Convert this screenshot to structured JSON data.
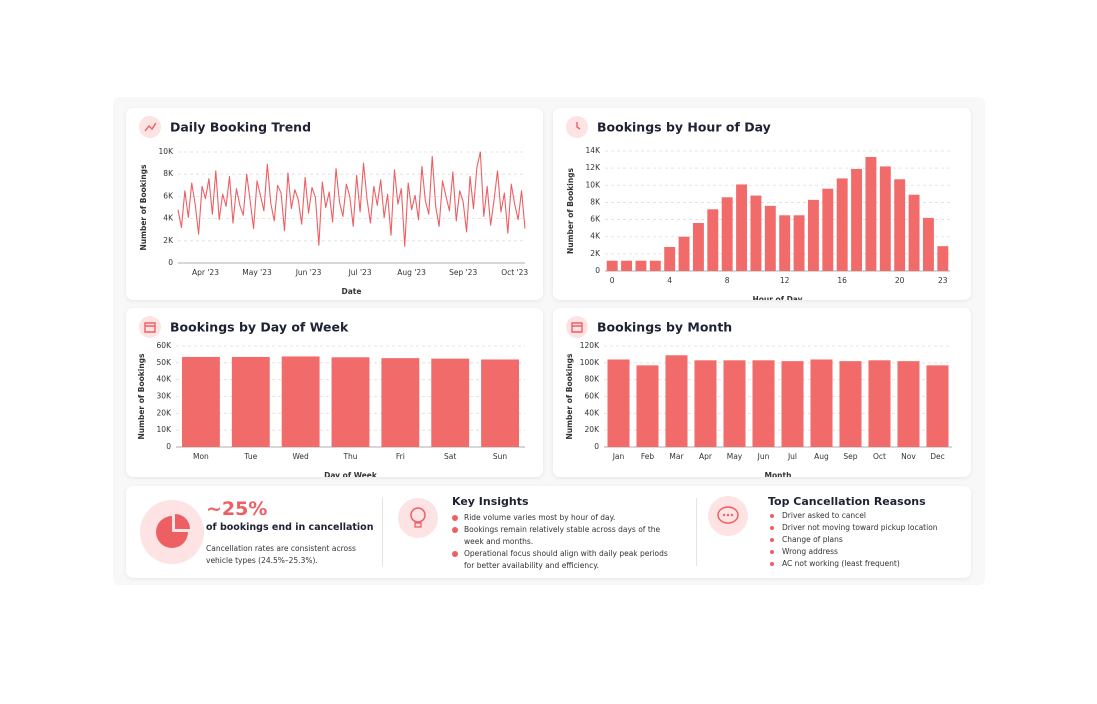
{
  "chart_data": [
    {
      "type": "line",
      "title": "Daily Booking Trend",
      "x_label": "Date",
      "y_label": "Number of Bookings",
      "color": "#ee5f63",
      "grid": true,
      "categories": [
        null,
        null,
        null,
        null,
        null,
        null,
        null,
        null,
        "Apr '23",
        null,
        null,
        null,
        null,
        null,
        null,
        null,
        null,
        null,
        null,
        null,
        null,
        null,
        null,
        "May '23",
        null,
        null,
        null,
        null,
        null,
        null,
        null,
        null,
        null,
        null,
        null,
        null,
        null,
        null,
        "Jun '23",
        null,
        null,
        null,
        null,
        null,
        null,
        null,
        null,
        null,
        null,
        null,
        null,
        null,
        null,
        "Jul '23",
        null,
        null,
        null,
        null,
        null,
        null,
        null,
        null,
        null,
        null,
        null,
        null,
        null,
        null,
        "Aug '23",
        null,
        null,
        null,
        null,
        null,
        null,
        null,
        null,
        null,
        null,
        null,
        null,
        null,
        null,
        "Sep '23",
        null,
        null,
        null,
        null,
        null,
        null,
        null,
        null,
        null,
        null,
        null,
        null,
        null,
        null,
        "Oct '23",
        null,
        null,
        null
      ],
      "values": [
        4800,
        3200,
        6500,
        4100,
        7200,
        5300,
        2600,
        6900,
        5800,
        7600,
        4400,
        8300,
        3900,
        6200,
        5100,
        7800,
        3600,
        6700,
        5200,
        4300,
        8000,
        5600,
        3100,
        7400,
        6100,
        4700,
        8900,
        5400,
        3800,
        7000,
        6300,
        2900,
        8100,
        4900,
        6600,
        5700,
        3500,
        7700,
        4500,
        6800,
        5900,
        1600,
        7300,
        5000,
        6400,
        3700,
        8500,
        5500,
        4200,
        7100,
        6000,
        3300,
        7900,
        4600,
        9000,
        5800,
        3600,
        6900,
        5200,
        7500,
        4100,
        6200,
        2500,
        8400,
        5300,
        6700,
        1500,
        7200,
        4800,
        6100,
        3900,
        8700,
        5600,
        4400,
        9600,
        5100,
        3300,
        7400,
        6000,
        4700,
        8200,
        3800,
        6500,
        5500,
        2800,
        7800,
        4900,
        8600,
        10000,
        4200,
        6900,
        3400,
        5700,
        8300,
        4600,
        6300,
        2700,
        7100,
        5300,
        3900,
        6500,
        3100
      ],
      "ylim": [
        0,
        10000
      ],
      "yticks": [
        0,
        {
          "value": 2000,
          "label": "2K"
        },
        {
          "value": 4000,
          "label": "4K"
        },
        {
          "value": 6000,
          "label": "6K"
        },
        {
          "value": 8000,
          "label": "8K"
        },
        {
          "value": 10000,
          "label": "10K"
        }
      ]
    },
    {
      "type": "bar",
      "title": "Bookings by Hour of Day",
      "x_label": "Hour of Day",
      "y_label": "Number of Bookings",
      "color": "#f26b6b",
      "grid": true,
      "categories": [
        0,
        null,
        null,
        null,
        4,
        null,
        null,
        null,
        8,
        null,
        null,
        null,
        12,
        null,
        null,
        null,
        16,
        null,
        null,
        null,
        20,
        null,
        null,
        23
      ],
      "values": [
        1200,
        1200,
        1200,
        1200,
        2800,
        4000,
        5600,
        7200,
        8600,
        10100,
        8800,
        7600,
        6500,
        6500,
        8300,
        9600,
        10800,
        11900,
        13300,
        12200,
        10700,
        8900,
        6200,
        2900
      ],
      "ylim": [
        0,
        14000
      ],
      "yticks": [
        0,
        {
          "value": 2000,
          "label": "2K"
        },
        {
          "value": 4000,
          "label": "4K"
        },
        {
          "value": 6000,
          "label": "6K"
        },
        {
          "value": 8000,
          "label": "8K"
        },
        {
          "value": 10000,
          "label": "10K"
        },
        {
          "value": 12000,
          "label": "12K"
        },
        {
          "value": 14000,
          "label": "14K"
        }
      ]
    },
    {
      "type": "bar",
      "title": "Bookings by Day of Week",
      "x_label": "Day of Week",
      "y_label": "Number of Bookings",
      "color": "#f26b6b",
      "grid": true,
      "categories": [
        "Mon",
        "Tue",
        "Wed",
        "Thu",
        "Fri",
        "Sat",
        "Sun"
      ],
      "values": [
        53500,
        53500,
        53800,
        53300,
        52800,
        52500,
        52000
      ],
      "ylim": [
        0,
        60000
      ],
      "yticks": [
        0,
        {
          "value": 10000,
          "label": "10K"
        },
        {
          "value": 20000,
          "label": "20K"
        },
        {
          "value": 30000,
          "label": "30K"
        },
        {
          "value": 40000,
          "label": "40K"
        },
        {
          "value": 50000,
          "label": "50K"
        },
        {
          "value": 60000,
          "label": "60K"
        }
      ]
    },
    {
      "type": "bar",
      "title": "Bookings by Month",
      "x_label": "Month",
      "y_label": "Number of Bookings",
      "color": "#f26b6b",
      "grid": true,
      "categories": [
        "Jan",
        "Feb",
        "Mar",
        "Apr",
        "May",
        "Jun",
        "Jul",
        "Aug",
        "Sep",
        "Oct",
        "Nov",
        "Dec"
      ],
      "values": [
        104000,
        97000,
        109000,
        103000,
        103000,
        103000,
        102000,
        104000,
        102000,
        103000,
        102000,
        97000
      ],
      "ylim": [
        0,
        120000
      ],
      "yticks": [
        0,
        {
          "value": 20000,
          "label": "20K"
        },
        {
          "value": 40000,
          "label": "40K"
        },
        {
          "value": 60000,
          "label": "60K"
        },
        {
          "value": 80000,
          "label": "80K"
        },
        {
          "value": 100000,
          "label": "100K"
        },
        {
          "value": 120000,
          "label": "120K"
        }
      ]
    }
  ],
  "summary": {
    "kpi": {
      "value": "~25%",
      "caption": "of bookings end in cancellation",
      "note": "Cancellation rates are consistent across vehicle types (24.5%–25.3%)."
    },
    "insights": {
      "title": "Key Insights",
      "items": [
        "Ride volume varies most by hour of day.",
        "Bookings remain relatively stable across days of the week and months.",
        "Operational focus should align with daily peak periods for better availability and efficiency."
      ]
    },
    "reasons": {
      "title": "Top Cancellation Reasons",
      "items": [
        "Driver asked to cancel",
        "Driver not moving toward pickup location",
        "Change of plans",
        "Wrong address",
        "AC not working (least frequent)"
      ]
    }
  }
}
